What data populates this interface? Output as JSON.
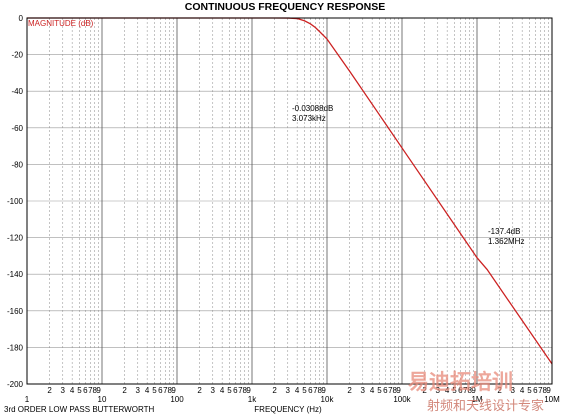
{
  "chart_data": {
    "type": "line",
    "title": "CONTINUOUS FREQUENCY RESPONSE",
    "xlabel": "FREQUENCY (Hz)",
    "ylabel": "",
    "subtitle": "3rd ORDER LOW PASS BUTTERWORTH",
    "x_scale": "log",
    "xlim": [
      1,
      10000000
    ],
    "ylim": [
      -200,
      0
    ],
    "y_ticks": [
      0,
      -20,
      -40,
      -60,
      -80,
      -100,
      -120,
      -140,
      -160,
      -180,
      -200
    ],
    "x_decade_labels": [
      "1",
      "10",
      "100",
      "1k",
      "10k",
      "100k",
      "1M",
      "10M"
    ],
    "x_minor_labels": [
      "2",
      "3",
      "4",
      "5",
      "6",
      "7",
      "8",
      "9"
    ],
    "grid": true,
    "legend_position": "top-left",
    "series": [
      {
        "name": "MAGNITUDE (dB)",
        "color": "#cc2222",
        "x": [
          1,
          10,
          100,
          1000,
          2000,
          3073,
          4000,
          5000,
          6000,
          7000,
          8000,
          10000,
          20000,
          50000,
          100000,
          1000000,
          1362000,
          10000000
        ],
        "values": [
          0,
          0,
          0,
          0,
          0,
          -0.03,
          -0.3,
          -1.5,
          -3.2,
          -5.2,
          -7.5,
          -11.5,
          -29.0,
          -52.9,
          -71.0,
          -131.0,
          -137.4,
          -189.0
        ]
      }
    ],
    "annotations": [
      {
        "lines": [
          "-0.03088dB",
          "3.073kHz"
        ]
      },
      {
        "lines": [
          "-137.4dB",
          "1.362MHz"
        ]
      }
    ]
  },
  "watermark": {
    "line1": "易迪拓培训",
    "line2": "射频和天线设计专家"
  }
}
